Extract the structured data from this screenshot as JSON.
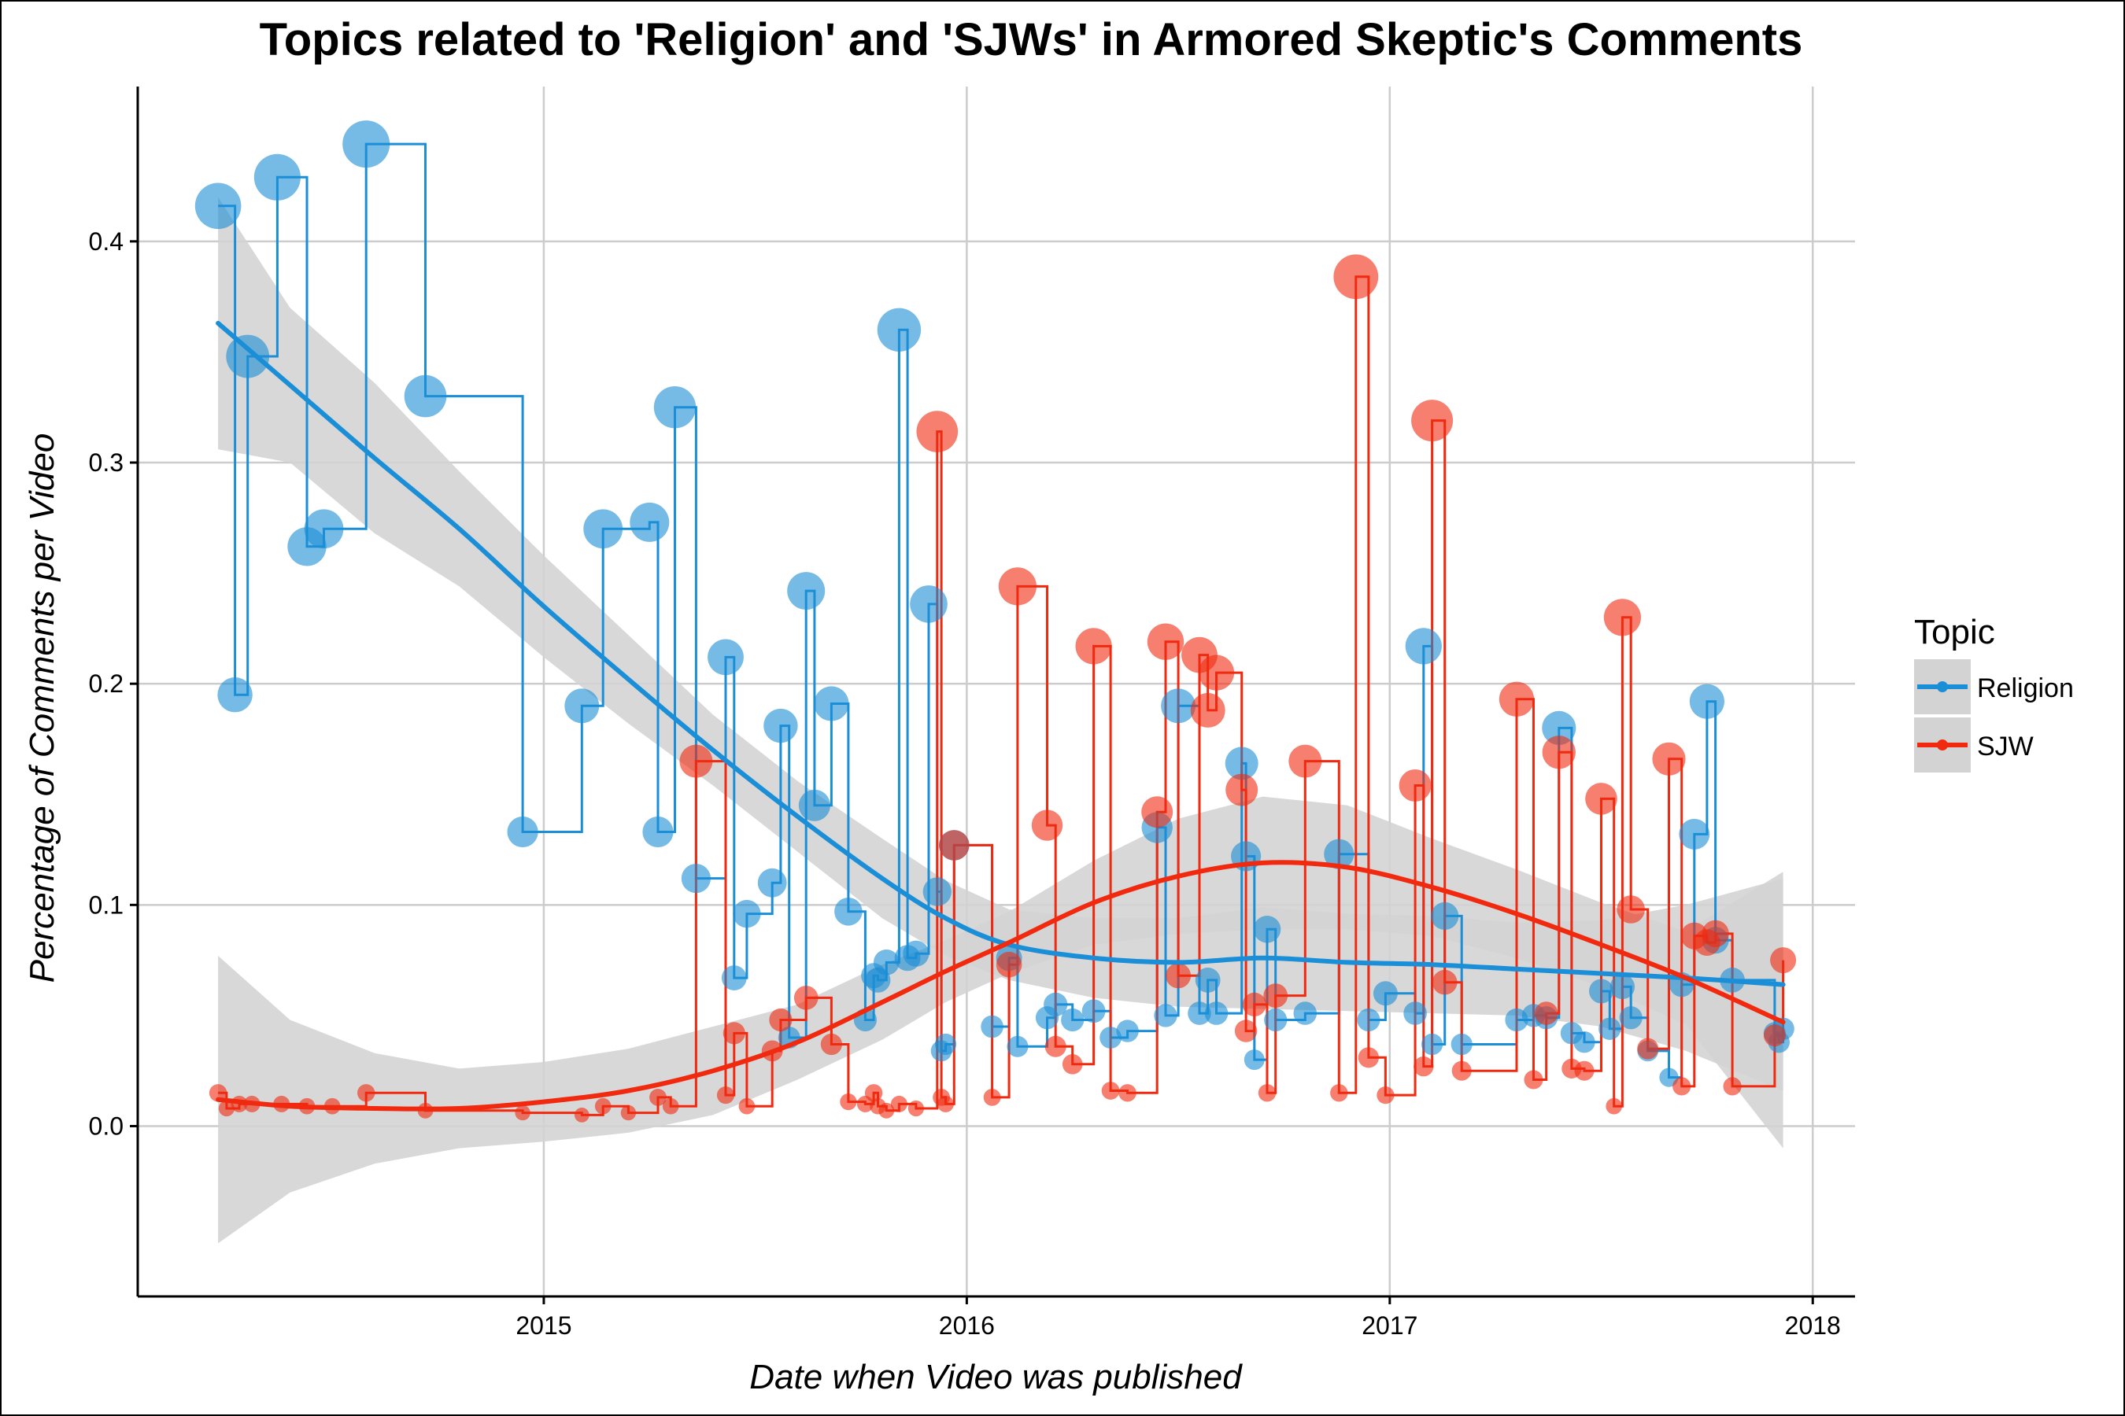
{
  "chart_data": {
    "type": "scatter",
    "title": "Topics related to 'Religion' and 'SJWs' in Armored Skeptic's Comments",
    "xlabel": "Date when Video was published",
    "ylabel": "Percentage of Comments per Video",
    "x_ticks": [
      "2015",
      "2016",
      "2017",
      "2018"
    ],
    "y_ticks": [
      "0.0",
      "0.1",
      "0.2",
      "0.3",
      "0.4"
    ],
    "xlim": [
      2014.04,
      2018.1
    ],
    "ylim": [
      -0.077,
      0.47
    ],
    "grid": true,
    "legend": {
      "title": "Topic",
      "position": "right"
    },
    "smoother": {
      "method": "loess",
      "confidence_band": true,
      "band_color": "#d3d3d3"
    },
    "series": [
      {
        "name": "Religion",
        "color": "#1a8ed6",
        "x": [
          2014.23,
          2014.27,
          2014.3,
          2014.37,
          2014.44,
          2014.48,
          2014.58,
          2014.72,
          2014.95,
          2015.09,
          2015.14,
          2015.25,
          2015.27,
          2015.31,
          2015.36,
          2015.43,
          2015.45,
          2015.48,
          2015.54,
          2015.56,
          2015.58,
          2015.62,
          2015.64,
          2015.68,
          2015.72,
          2015.76,
          2015.78,
          2015.79,
          2015.81,
          2015.84,
          2015.86,
          2015.88,
          2015.91,
          2015.93,
          2015.94,
          2015.95,
          2015.97,
          2016.06,
          2016.1,
          2016.12,
          2016.19,
          2016.21,
          2016.25,
          2016.3,
          2016.34,
          2016.38,
          2016.45,
          2016.47,
          2016.5,
          2016.55,
          2016.57,
          2016.59,
          2016.65,
          2016.66,
          2016.68,
          2016.71,
          2016.73,
          2016.8,
          2016.88,
          2016.95,
          2016.99,
          2017.06,
          2017.08,
          2017.1,
          2017.13,
          2017.17,
          2017.3,
          2017.34,
          2017.37,
          2017.4,
          2017.43,
          2017.46,
          2017.5,
          2017.52,
          2017.55,
          2017.57,
          2017.61,
          2017.66,
          2017.69,
          2017.72,
          2017.75,
          2017.77,
          2017.81,
          2017.91,
          2017.92,
          2017.93
        ],
        "y": [
          0.416,
          0.195,
          0.348,
          0.429,
          0.262,
          0.27,
          0.444,
          0.33,
          0.133,
          0.19,
          0.27,
          0.273,
          0.133,
          0.325,
          0.112,
          0.212,
          0.067,
          0.096,
          0.11,
          0.181,
          0.04,
          0.242,
          0.145,
          0.191,
          0.097,
          0.048,
          0.068,
          0.066,
          0.074,
          0.36,
          0.076,
          0.078,
          0.236,
          0.106,
          0.034,
          0.037,
          0.127,
          0.045,
          0.076,
          0.036,
          0.049,
          0.055,
          0.048,
          0.052,
          0.04,
          0.043,
          0.135,
          0.05,
          0.19,
          0.051,
          0.066,
          0.051,
          0.164,
          0.122,
          0.03,
          0.089,
          0.048,
          0.051,
          0.123,
          0.048,
          0.06,
          0.051,
          0.217,
          0.037,
          0.095,
          0.037,
          0.048,
          0.05,
          0.049,
          0.18,
          0.042,
          0.038,
          0.061,
          0.044,
          0.063,
          0.049,
          0.034,
          0.022,
          0.064,
          0.132,
          0.192,
          0.084,
          0.066,
          0.042,
          0.038,
          0.044
        ],
        "size": [
          0.416,
          0.195,
          0.348,
          0.429,
          0.262,
          0.27,
          0.444,
          0.33,
          0.133,
          0.19,
          0.27,
          0.273,
          0.133,
          0.325,
          0.112,
          0.212,
          0.067,
          0.096,
          0.11,
          0.181,
          0.04,
          0.242,
          0.145,
          0.191,
          0.097,
          0.048,
          0.068,
          0.066,
          0.074,
          0.36,
          0.076,
          0.078,
          0.236,
          0.106,
          0.034,
          0.037,
          0.127,
          0.045,
          0.076,
          0.036,
          0.049,
          0.055,
          0.048,
          0.052,
          0.04,
          0.043,
          0.135,
          0.05,
          0.19,
          0.051,
          0.066,
          0.051,
          0.164,
          0.122,
          0.03,
          0.089,
          0.048,
          0.051,
          0.123,
          0.048,
          0.06,
          0.051,
          0.217,
          0.037,
          0.095,
          0.037,
          0.048,
          0.05,
          0.049,
          0.18,
          0.042,
          0.038,
          0.061,
          0.044,
          0.063,
          0.049,
          0.034,
          0.022,
          0.064,
          0.132,
          0.192,
          0.084,
          0.066,
          0.042,
          0.038,
          0.044
        ],
        "smooth_x": [
          2014.23,
          2014.4,
          2014.6,
          2014.8,
          2015.0,
          2015.2,
          2015.4,
          2015.6,
          2015.8,
          2015.95,
          2016.1,
          2016.3,
          2016.5,
          2016.7,
          2016.9,
          2017.1,
          2017.3,
          2017.5,
          2017.7,
          2017.93
        ],
        "smooth_y": [
          0.363,
          0.335,
          0.302,
          0.27,
          0.235,
          0.202,
          0.17,
          0.14,
          0.112,
          0.094,
          0.082,
          0.076,
          0.074,
          0.076,
          0.074,
          0.073,
          0.071,
          0.069,
          0.067,
          0.064
        ],
        "band_lower": [
          0.306,
          0.3,
          0.268,
          0.244,
          0.212,
          0.182,
          0.154,
          0.124,
          0.094,
          0.077,
          0.066,
          0.058,
          0.054,
          0.053,
          0.052,
          0.051,
          0.05,
          0.045,
          0.034,
          0.016
        ],
        "band_upper": [
          0.42,
          0.37,
          0.336,
          0.296,
          0.258,
          0.222,
          0.186,
          0.156,
          0.13,
          0.111,
          0.098,
          0.094,
          0.094,
          0.099,
          0.096,
          0.095,
          0.092,
          0.093,
          0.1,
          0.112
        ]
      },
      {
        "name": "SJW",
        "color": "#f0290f",
        "x": [
          2014.23,
          2014.25,
          2014.28,
          2014.31,
          2014.38,
          2014.44,
          2014.5,
          2014.58,
          2014.72,
          2014.95,
          2015.09,
          2015.14,
          2015.2,
          2015.27,
          2015.3,
          2015.36,
          2015.43,
          2015.45,
          2015.48,
          2015.54,
          2015.56,
          2015.62,
          2015.68,
          2015.72,
          2015.76,
          2015.78,
          2015.79,
          2015.81,
          2015.84,
          2015.88,
          2015.93,
          2015.94,
          2015.95,
          2015.97,
          2016.06,
          2016.1,
          2016.12,
          2016.19,
          2016.21,
          2016.25,
          2016.3,
          2016.34,
          2016.38,
          2016.45,
          2016.47,
          2016.5,
          2016.55,
          2016.57,
          2016.59,
          2016.65,
          2016.66,
          2016.68,
          2016.71,
          2016.73,
          2016.8,
          2016.88,
          2016.92,
          2016.95,
          2016.99,
          2017.06,
          2017.08,
          2017.1,
          2017.13,
          2017.17,
          2017.3,
          2017.34,
          2017.37,
          2017.4,
          2017.43,
          2017.46,
          2017.5,
          2017.53,
          2017.55,
          2017.57,
          2017.61,
          2017.66,
          2017.69,
          2017.72,
          2017.75,
          2017.77,
          2017.81,
          2017.91,
          2017.93
        ],
        "y": [
          0.015,
          0.008,
          0.01,
          0.01,
          0.01,
          0.009,
          0.009,
          0.015,
          0.007,
          0.006,
          0.005,
          0.009,
          0.006,
          0.013,
          0.009,
          0.165,
          0.014,
          0.042,
          0.009,
          0.034,
          0.048,
          0.058,
          0.037,
          0.011,
          0.01,
          0.015,
          0.009,
          0.007,
          0.01,
          0.008,
          0.314,
          0.013,
          0.01,
          0.127,
          0.013,
          0.073,
          0.244,
          0.136,
          0.036,
          0.028,
          0.217,
          0.016,
          0.015,
          0.142,
          0.219,
          0.068,
          0.213,
          0.188,
          0.205,
          0.152,
          0.043,
          0.055,
          0.015,
          0.059,
          0.165,
          0.015,
          0.384,
          0.031,
          0.014,
          0.154,
          0.027,
          0.319,
          0.065,
          0.025,
          0.193,
          0.021,
          0.051,
          0.169,
          0.026,
          0.025,
          0.148,
          0.009,
          0.23,
          0.098,
          0.035,
          0.166,
          0.018,
          0.086,
          0.083,
          0.087,
          0.018,
          0.041,
          0.075
        ],
        "size": [
          0.015,
          0.008,
          0.01,
          0.01,
          0.01,
          0.009,
          0.009,
          0.015,
          0.007,
          0.006,
          0.005,
          0.009,
          0.006,
          0.013,
          0.009,
          0.165,
          0.014,
          0.042,
          0.009,
          0.034,
          0.048,
          0.058,
          0.037,
          0.011,
          0.01,
          0.015,
          0.009,
          0.007,
          0.01,
          0.008,
          0.314,
          0.013,
          0.01,
          0.127,
          0.013,
          0.073,
          0.244,
          0.136,
          0.036,
          0.028,
          0.217,
          0.016,
          0.015,
          0.142,
          0.219,
          0.068,
          0.213,
          0.188,
          0.205,
          0.152,
          0.043,
          0.055,
          0.015,
          0.059,
          0.165,
          0.015,
          0.384,
          0.031,
          0.014,
          0.154,
          0.027,
          0.319,
          0.065,
          0.025,
          0.193,
          0.021,
          0.051,
          0.169,
          0.026,
          0.025,
          0.148,
          0.009,
          0.23,
          0.098,
          0.035,
          0.166,
          0.018,
          0.086,
          0.083,
          0.087,
          0.018,
          0.041,
          0.075
        ],
        "smooth_x": [
          2014.23,
          2014.4,
          2014.6,
          2014.8,
          2015.0,
          2015.2,
          2015.4,
          2015.6,
          2015.8,
          2015.95,
          2016.1,
          2016.3,
          2016.5,
          2016.7,
          2016.9,
          2017.1,
          2017.3,
          2017.5,
          2017.7,
          2017.93
        ],
        "smooth_y": [
          0.012,
          0.009,
          0.008,
          0.008,
          0.011,
          0.016,
          0.025,
          0.038,
          0.056,
          0.07,
          0.083,
          0.101,
          0.113,
          0.119,
          0.117,
          0.108,
          0.096,
          0.082,
          0.067,
          0.047
        ],
        "band_lower": [
          -0.053,
          -0.03,
          -0.017,
          -0.01,
          -0.007,
          -0.003,
          0.005,
          0.021,
          0.039,
          0.056,
          0.069,
          0.082,
          0.087,
          0.089,
          0.089,
          0.086,
          0.076,
          0.063,
          0.046,
          -0.01
        ],
        "band_upper": [
          0.077,
          0.048,
          0.033,
          0.026,
          0.029,
          0.035,
          0.045,
          0.055,
          0.073,
          0.084,
          0.097,
          0.12,
          0.139,
          0.149,
          0.145,
          0.13,
          0.116,
          0.101,
          0.088,
          0.115
        ]
      }
    ]
  }
}
